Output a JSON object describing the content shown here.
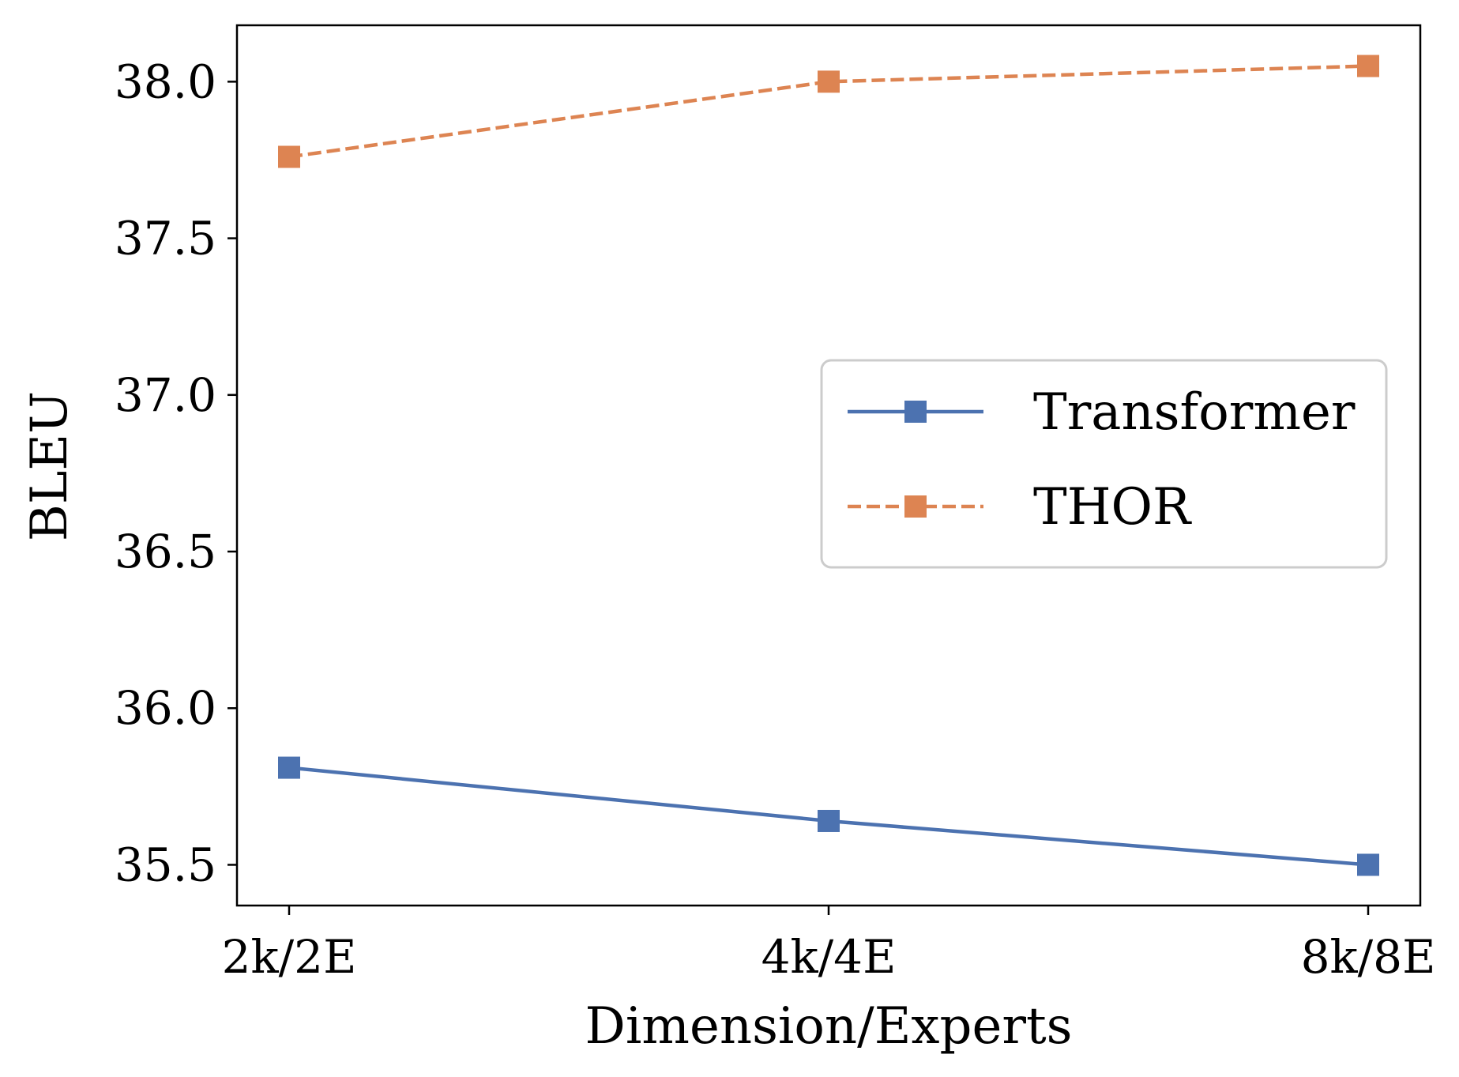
{
  "chart_data": {
    "type": "line",
    "title": "",
    "xlabel": "Dimension/Experts",
    "ylabel": "BLEU",
    "categories": [
      "2k/2E",
      "4k/4E",
      "8k/8E"
    ],
    "ylim": [
      35.37,
      38.18
    ],
    "yticks": [
      35.5,
      36.0,
      36.5,
      37.0,
      37.5,
      38.0
    ],
    "ytick_labels": [
      "35.5",
      "36.0",
      "36.5",
      "37.0",
      "37.5",
      "38.0"
    ],
    "grid": false,
    "legend_position": "center-right",
    "series": [
      {
        "name": "Transformer",
        "values": [
          35.81,
          35.64,
          35.5
        ],
        "color": "#4c72b0",
        "linestyle": "solid",
        "marker": "square"
      },
      {
        "name": "THOR",
        "values": [
          37.76,
          38.0,
          38.05
        ],
        "color": "#dd8452",
        "linestyle": "dashed",
        "marker": "square"
      }
    ]
  }
}
